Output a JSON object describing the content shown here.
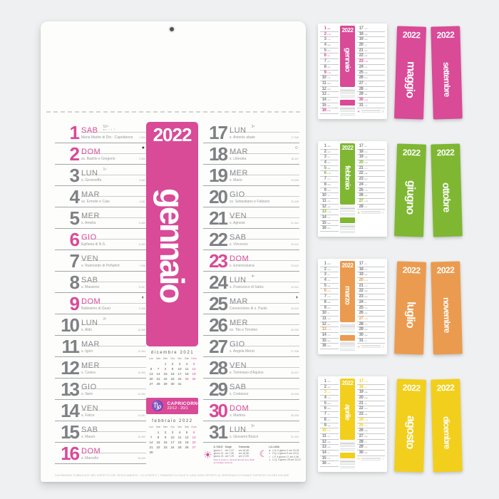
{
  "page": {
    "background": "#eef0f1"
  },
  "calendar": {
    "year": "2022",
    "month": "gennaio",
    "accent": "#d94a97",
    "left_days": [
      {
        "n": "1",
        "d": "SAB",
        "s": "Maria Madre di Dio - Capodanno",
        "r": "1-364",
        "hl": true,
        "wk": "52ᵃ",
        "lg": "●◐○◑☽"
      },
      {
        "n": "2",
        "d": "DOM",
        "s": "ss. Basilio e Gregorio",
        "r": "2-363",
        "hl": true,
        "mo": "●"
      },
      {
        "n": "3",
        "d": "LUN",
        "s": "s. Genoveffa",
        "r": "3-362",
        "wk": "1ᵃ"
      },
      {
        "n": "4",
        "d": "MAR",
        "s": "ss. Ermete e Caio",
        "r": "4-361"
      },
      {
        "n": "5",
        "d": "MER",
        "s": "s. Amelia",
        "r": "5-360"
      },
      {
        "n": "6",
        "d": "GIO",
        "s": "Epifania di N.S.",
        "r": "6-359",
        "hl": true
      },
      {
        "n": "7",
        "d": "VEN",
        "s": "s. Raimondo di Peñafort",
        "r": "7-358"
      },
      {
        "n": "8",
        "d": "SAB",
        "s": "s. Massimo",
        "r": "8-357"
      },
      {
        "n": "9",
        "d": "DOM",
        "s": "Battesimo di Gesù",
        "r": "9-356",
        "hl": true,
        "mo": "◐"
      },
      {
        "n": "10",
        "d": "LUN",
        "s": "s. Aldo",
        "r": "10-355",
        "wk": "2ᵃ"
      },
      {
        "n": "11",
        "d": "MAR",
        "s": "s. Igino",
        "r": "11-354"
      },
      {
        "n": "12",
        "d": "MER",
        "s": "s. Cesira",
        "r": "12-353"
      },
      {
        "n": "13",
        "d": "GIO",
        "s": "s. Ilario",
        "r": "13-352"
      },
      {
        "n": "14",
        "d": "VEN",
        "s": "s. Felice",
        "r": "14-351"
      },
      {
        "n": "15",
        "d": "SAB",
        "s": "s. Mauro",
        "r": "15-350"
      },
      {
        "n": "16",
        "d": "DOM",
        "s": "s. Marcello",
        "r": "16-349",
        "hl": true
      }
    ],
    "right_days": [
      {
        "n": "17",
        "d": "LUN",
        "s": "s. Antonio abate",
        "r": "17-348",
        "wk": "3ᵃ"
      },
      {
        "n": "18",
        "d": "MAR",
        "s": "s. Liberata",
        "r": "18-347",
        "mo": "○"
      },
      {
        "n": "19",
        "d": "MER",
        "s": "s. Mario",
        "r": "19-346"
      },
      {
        "n": "20",
        "d": "GIO",
        "s": "ss. Sebastiano e Fabiano",
        "r": "20-345"
      },
      {
        "n": "21",
        "d": "VEN",
        "s": "s. Agnese",
        "r": "21-344"
      },
      {
        "n": "22",
        "d": "SAB",
        "s": "s. Vincenzo",
        "r": "22-343"
      },
      {
        "n": "23",
        "d": "DOM",
        "s": "s. Emerenziana",
        "r": "23-342",
        "hl": true
      },
      {
        "n": "24",
        "d": "LUN",
        "s": "s. Francesco di Sales",
        "r": "24-341",
        "wk": "4ᵃ"
      },
      {
        "n": "25",
        "d": "MAR",
        "s": "Conversione di s. Paolo",
        "r": "25-340",
        "mo": "◑"
      },
      {
        "n": "26",
        "d": "MER",
        "s": "ss. Tito e Timoteo",
        "r": "26-339"
      },
      {
        "n": "27",
        "d": "GIO",
        "s": "s. Angela Merici",
        "r": "27-338"
      },
      {
        "n": "28",
        "d": "VEN",
        "s": "s. Tommaso d'Aquino",
        "r": "28-337"
      },
      {
        "n": "29",
        "d": "SAB",
        "s": "s. Costanzo",
        "r": "29-336"
      },
      {
        "n": "30",
        "d": "DOM",
        "s": "s. Martina",
        "r": "30-335",
        "hl": true
      },
      {
        "n": "31",
        "d": "LUN",
        "s": "s. Giovanni Bosco",
        "r": "31-334",
        "wk": "5ᵃ"
      }
    ],
    "prev_month": {
      "title": "dicembre 2021",
      "headers": [
        "Lun",
        "Mar",
        "Mer",
        "Gio",
        "Ven",
        "Sab",
        "Dom"
      ],
      "weeks": [
        [
          "",
          "",
          "1",
          "2",
          "3",
          "4",
          "5"
        ],
        [
          "6",
          "7",
          "8",
          "9",
          "10",
          "11",
          "12"
        ],
        [
          "13",
          "14",
          "15",
          "16",
          "17",
          "18",
          "19"
        ],
        [
          "20",
          "21",
          "22",
          "23",
          "24",
          "25",
          "26"
        ],
        [
          "27",
          "28",
          "29",
          "30",
          "31",
          "",
          ""
        ]
      ],
      "hl": [
        5,
        8,
        12,
        19,
        25,
        26
      ]
    },
    "next_month": {
      "title": "febbraio 2022",
      "headers": [
        "Lun",
        "Mar",
        "Mer",
        "Gio",
        "Ven",
        "Sab",
        "Dom"
      ],
      "weeks": [
        [
          "",
          "1",
          "2",
          "3",
          "4",
          "5",
          "6"
        ],
        [
          "7",
          "8",
          "9",
          "10",
          "11",
          "12",
          "13"
        ],
        [
          "14",
          "15",
          "16",
          "17",
          "18",
          "19",
          "20"
        ],
        [
          "21",
          "22",
          "23",
          "24",
          "25",
          "26",
          "27"
        ],
        [
          "28",
          "",
          "",
          "",
          "",
          "",
          ""
        ]
      ],
      "hl": [
        6,
        13,
        20,
        27
      ]
    },
    "zodiac": {
      "symbol": "♑",
      "name": "CAPRICORNO",
      "dates": "22/12 - 20/1"
    },
    "sun": {
      "title": "IL SOLE",
      "col1": "Sorge",
      "col2": "Tramonta",
      "rows": [
        [
          "giorno 1",
          "ore 7,37",
          "ore 16,48"
        ],
        [
          "giorno 11",
          "ore 7,35",
          "ore 16,58"
        ],
        [
          "giorno 21",
          "ore 7,29",
          "ore 17,09"
        ]
      ],
      "note": "Nota: le levate e i tramonti del sole sono riferiti al meridiano di Roma"
    },
    "moon": {
      "title": "LA LUNA",
      "rows": [
        [
          "●",
          "L.N. il giorno 2 ore 19,33"
        ],
        [
          "◐",
          "P.Q. il giorno 9 ore 19,11"
        ],
        [
          "○",
          "L.P. il giorno 17 ore 0,48"
        ],
        [
          "◑",
          "U.Q. il giorno 25 ore 14,41"
        ]
      ]
    },
    "fine_print": "CALENDARIO PUBBLICATO NEL RISPETTO DEL REGOLAMENTO - LE LEVATE E I TRAMONTI DI SOLE E LUNA SONO RIFERITI AL MERIDIANO DI ROMA E RIPORTATI IN ORA SOLARE"
  },
  "panel": {
    "rows": [
      {
        "color": "#d94a97",
        "mini": {
          "year": "2022",
          "month": "gennaio",
          "left": [
            [
              1,
              "SAB",
              1
            ],
            [
              2,
              "DOM",
              1
            ],
            [
              3,
              "LUN",
              0
            ],
            [
              4,
              "MAR",
              0
            ],
            [
              5,
              "MER",
              0
            ],
            [
              6,
              "GIO",
              1
            ],
            [
              7,
              "VEN",
              0
            ],
            [
              8,
              "SAB",
              0
            ],
            [
              9,
              "DOM",
              1
            ],
            [
              10,
              "LUN",
              0
            ],
            [
              11,
              "MAR",
              0
            ],
            [
              12,
              "MER",
              0
            ],
            [
              13,
              "GIO",
              0
            ],
            [
              14,
              "VEN",
              0
            ],
            [
              15,
              "SAB",
              0
            ],
            [
              16,
              "DOM",
              1
            ]
          ],
          "right": [
            [
              17,
              "LUN",
              0
            ],
            [
              18,
              "MAR",
              0
            ],
            [
              19,
              "MER",
              0
            ],
            [
              20,
              "GIO",
              0
            ],
            [
              21,
              "VEN",
              0
            ],
            [
              22,
              "SAB",
              0
            ],
            [
              23,
              "DOM",
              1
            ],
            [
              24,
              "LUN",
              0
            ],
            [
              25,
              "MAR",
              0
            ],
            [
              26,
              "MER",
              0
            ],
            [
              27,
              "GIO",
              0
            ],
            [
              28,
              "VEN",
              0
            ],
            [
              29,
              "SAB",
              0
            ],
            [
              30,
              "DOM",
              1
            ],
            [
              31,
              "LUN",
              0
            ]
          ]
        },
        "strips": [
          {
            "year": "2022",
            "month": "maggio"
          },
          {
            "year": "2022",
            "month": "settembre"
          }
        ]
      },
      {
        "color": "#7fb733",
        "mini": {
          "year": "2022",
          "month": "febbraio",
          "left": [
            [
              1,
              "MAR",
              0
            ],
            [
              2,
              "MER",
              0
            ],
            [
              3,
              "GIO",
              0
            ],
            [
              4,
              "VEN",
              0
            ],
            [
              5,
              "SAB",
              0
            ],
            [
              6,
              "DOM",
              1
            ],
            [
              7,
              "LUN",
              0
            ],
            [
              8,
              "MAR",
              0
            ],
            [
              9,
              "MER",
              0
            ],
            [
              10,
              "GIO",
              0
            ],
            [
              11,
              "VEN",
              0
            ],
            [
              12,
              "SAB",
              0
            ],
            [
              13,
              "DOM",
              1
            ],
            [
              14,
              "LUN",
              0
            ],
            [
              15,
              "MAR",
              0
            ],
            [
              16,
              "MER",
              0
            ]
          ],
          "right": [
            [
              17,
              "GIO",
              0
            ],
            [
              18,
              "VEN",
              0
            ],
            [
              19,
              "SAB",
              0
            ],
            [
              20,
              "DOM",
              1
            ],
            [
              21,
              "LUN",
              0
            ],
            [
              22,
              "MAR",
              0
            ],
            [
              23,
              "MER",
              0
            ],
            [
              24,
              "GIO",
              0
            ],
            [
              25,
              "VEN",
              0
            ],
            [
              26,
              "SAB",
              0
            ],
            [
              27,
              "DOM",
              1
            ],
            [
              28,
              "LUN",
              0
            ]
          ]
        },
        "strips": [
          {
            "year": "2022",
            "month": "giugno"
          },
          {
            "year": "2022",
            "month": "ottobre"
          }
        ]
      },
      {
        "color": "#eb9b4f",
        "mini": {
          "year": "2022",
          "month": "marzo",
          "left": [
            [
              1,
              "MAR",
              0
            ],
            [
              2,
              "MER",
              0
            ],
            [
              3,
              "GIO",
              0
            ],
            [
              4,
              "VEN",
              0
            ],
            [
              5,
              "SAB",
              0
            ],
            [
              6,
              "DOM",
              1
            ],
            [
              7,
              "LUN",
              0
            ],
            [
              8,
              "MAR",
              0
            ],
            [
              9,
              "MER",
              0
            ],
            [
              10,
              "GIO",
              0
            ],
            [
              11,
              "VEN",
              0
            ],
            [
              12,
              "SAB",
              0
            ],
            [
              13,
              "DOM",
              1
            ],
            [
              14,
              "LUN",
              0
            ],
            [
              15,
              "MAR",
              0
            ],
            [
              16,
              "MER",
              0
            ]
          ],
          "right": [
            [
              17,
              "GIO",
              0
            ],
            [
              18,
              "VEN",
              0
            ],
            [
              19,
              "SAB",
              0
            ],
            [
              20,
              "DOM",
              1
            ],
            [
              21,
              "LUN",
              0
            ],
            [
              22,
              "MAR",
              0
            ],
            [
              23,
              "MER",
              0
            ],
            [
              24,
              "GIO",
              0
            ],
            [
              25,
              "VEN",
              0
            ],
            [
              26,
              "SAB",
              0
            ],
            [
              27,
              "DOM",
              1
            ],
            [
              28,
              "LUN",
              0
            ],
            [
              29,
              "MAR",
              0
            ],
            [
              30,
              "MER",
              0
            ],
            [
              31,
              "GIO",
              0
            ]
          ]
        },
        "strips": [
          {
            "year": "2022",
            "month": "luglio"
          },
          {
            "year": "2022",
            "month": "novembre"
          }
        ]
      },
      {
        "color": "#f2cf1d",
        "mini": {
          "year": "2022",
          "month": "aprile",
          "left": [
            [
              1,
              "VEN",
              0
            ],
            [
              2,
              "SAB",
              0
            ],
            [
              3,
              "DOM",
              1
            ],
            [
              4,
              "LUN",
              0
            ],
            [
              5,
              "MAR",
              0
            ],
            [
              6,
              "MER",
              0
            ],
            [
              7,
              "GIO",
              0
            ],
            [
              8,
              "VEN",
              0
            ],
            [
              9,
              "SAB",
              0
            ],
            [
              10,
              "DOM",
              1
            ],
            [
              11,
              "LUN",
              0
            ],
            [
              12,
              "MAR",
              0
            ],
            [
              13,
              "MER",
              0
            ],
            [
              14,
              "GIO",
              0
            ],
            [
              15,
              "VEN",
              0
            ],
            [
              16,
              "SAB",
              0
            ]
          ],
          "right": [
            [
              17,
              "DOM",
              1
            ],
            [
              18,
              "LUN",
              1
            ],
            [
              19,
              "MAR",
              0
            ],
            [
              20,
              "MER",
              0
            ],
            [
              21,
              "GIO",
              0
            ],
            [
              22,
              "VEN",
              0
            ],
            [
              23,
              "SAB",
              0
            ],
            [
              24,
              "DOM",
              1
            ],
            [
              25,
              "LUN",
              1
            ],
            [
              26,
              "MAR",
              0
            ],
            [
              27,
              "MER",
              0
            ],
            [
              28,
              "GIO",
              0
            ],
            [
              29,
              "VEN",
              0
            ],
            [
              30,
              "SAB",
              0
            ]
          ]
        },
        "strips": [
          {
            "year": "2022",
            "month": "agosto"
          },
          {
            "year": "2022",
            "month": "dicembre"
          }
        ]
      }
    ]
  }
}
